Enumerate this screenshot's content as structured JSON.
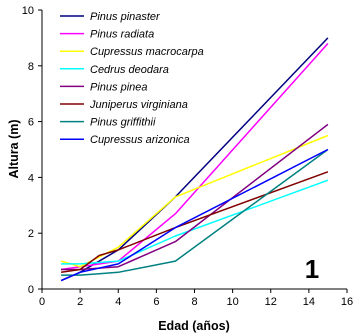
{
  "chart_data": {
    "type": "line",
    "xlabel": "Edad (años)",
    "ylabel": "Altura (m)",
    "xlim": [
      0,
      16
    ],
    "ylim": [
      0,
      10
    ],
    "xticks": [
      0,
      2,
      4,
      6,
      8,
      10,
      12,
      14,
      16
    ],
    "yticks": [
      0,
      2,
      4,
      6,
      8,
      10
    ],
    "legend_position": "top-left",
    "panel_label": "1",
    "series": [
      {
        "name": "Pinus pinaster",
        "color": "#000080",
        "points": [
          [
            1,
            0.3
          ],
          [
            2,
            0.6
          ],
          [
            4,
            1.4
          ],
          [
            7,
            3.3
          ],
          [
            15,
            9.0
          ]
        ]
      },
      {
        "name": "Pinus radiata",
        "color": "#ff00ff",
        "points": [
          [
            1,
            0.7
          ],
          [
            2,
            0.8
          ],
          [
            4,
            1.0
          ],
          [
            7,
            2.7
          ],
          [
            15,
            8.8
          ]
        ]
      },
      {
        "name": "Cupressus macrocarpa",
        "color": "#ffff00",
        "points": [
          [
            1,
            1.0
          ],
          [
            2,
            0.8
          ],
          [
            4,
            1.5
          ],
          [
            7,
            3.3
          ],
          [
            15,
            5.5
          ]
        ]
      },
      {
        "name": "Cedrus deodara",
        "color": "#00ffff",
        "points": [
          [
            1,
            0.9
          ],
          [
            2,
            0.9
          ],
          [
            4,
            1.0
          ],
          [
            7,
            1.9
          ],
          [
            15,
            3.9
          ]
        ]
      },
      {
        "name": "Pinus pinea",
        "color": "#800080",
        "points": [
          [
            1,
            0.7
          ],
          [
            2,
            0.7
          ],
          [
            4,
            0.8
          ],
          [
            7,
            1.7
          ],
          [
            15,
            5.9
          ]
        ]
      },
      {
        "name": "Juniperus virginiana",
        "color": "#800000",
        "points": [
          [
            1,
            0.6
          ],
          [
            2,
            0.7
          ],
          [
            3,
            1.2
          ],
          [
            4,
            1.4
          ],
          [
            7,
            2.2
          ],
          [
            15,
            4.2
          ]
        ]
      },
      {
        "name": "Pinus griffithii",
        "color": "#008080",
        "points": [
          [
            1,
            0.5
          ],
          [
            2,
            0.5
          ],
          [
            3,
            0.55
          ],
          [
            4,
            0.6
          ],
          [
            7,
            1.0
          ],
          [
            15,
            5.0
          ]
        ]
      },
      {
        "name": "Cupressus arizonica",
        "color": "#0000ff",
        "points": [
          [
            1,
            0.3
          ],
          [
            2,
            0.6
          ],
          [
            4,
            0.9
          ],
          [
            7,
            2.2
          ],
          [
            15,
            5.0
          ]
        ]
      }
    ]
  }
}
